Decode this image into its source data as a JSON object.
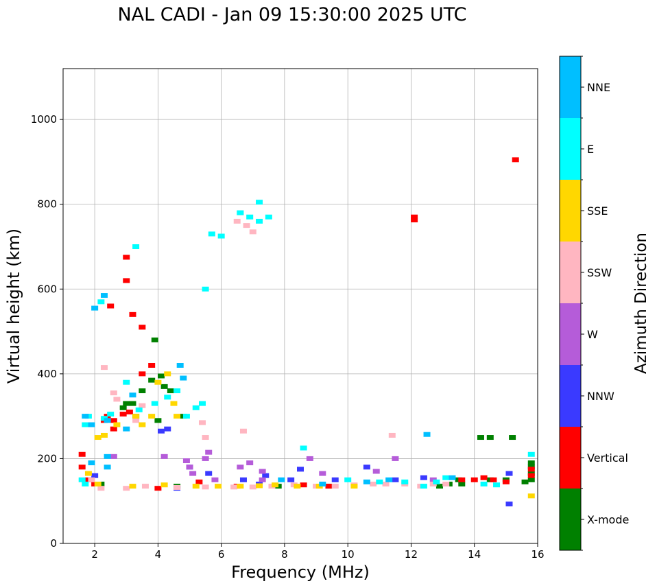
{
  "chart_data": {
    "type": "scatter",
    "title": "NAL CADI - Jan 09 15:30:00 2025 UTC",
    "xlabel": "Frequency (MHz)",
    "ylabel": "Virtual height (km)",
    "xlim": [
      1.0,
      16.0
    ],
    "ylim": [
      0,
      1120
    ],
    "xticks": [
      2,
      4,
      6,
      8,
      10,
      12,
      14,
      16
    ],
    "yticks": [
      0,
      200,
      400,
      600,
      800,
      1000
    ],
    "grid": true,
    "colorbar": {
      "label": "Azimuth Direction",
      "categories": [
        {
          "name": "X-mode",
          "color": "#008000"
        },
        {
          "name": "Vertical",
          "color": "#ff0000"
        },
        {
          "name": "NNW",
          "color": "#3a3aff"
        },
        {
          "name": "W",
          "color": "#b55cd9"
        },
        {
          "name": "SSW",
          "color": "#ffb6c1"
        },
        {
          "name": "SSE",
          "color": "#ffd700"
        },
        {
          "name": "E",
          "color": "#00ffff"
        },
        {
          "name": "NNE",
          "color": "#00bfff"
        }
      ]
    },
    "series": [
      {
        "name": "X-mode",
        "points": [
          [
            3.2,
            330
          ],
          [
            3.5,
            360
          ],
          [
            3.8,
            385
          ],
          [
            3.9,
            480
          ],
          [
            4.1,
            395
          ],
          [
            4.2,
            370
          ],
          [
            4.4,
            360
          ],
          [
            4.8,
            300
          ],
          [
            3.3,
            300
          ],
          [
            2.2,
            140
          ],
          [
            13.2,
            140
          ],
          [
            13.5,
            150
          ],
          [
            14.2,
            250
          ],
          [
            14.5,
            250
          ],
          [
            15.2,
            250
          ],
          [
            14.5,
            150
          ],
          [
            15.0,
            150
          ],
          [
            15.8,
            150
          ],
          [
            15.8,
            165
          ],
          [
            15.8,
            180
          ],
          [
            15.8,
            190
          ],
          [
            15.6,
            145
          ],
          [
            12.9,
            135
          ],
          [
            13.6,
            140
          ],
          [
            4.6,
            135
          ],
          [
            7.8,
            135
          ],
          [
            9.4,
            135
          ],
          [
            2.9,
            320
          ],
          [
            3.0,
            330
          ],
          [
            4.0,
            290
          ]
        ]
      },
      {
        "name": "Vertical",
        "points": [
          [
            15.3,
            905
          ],
          [
            12.1,
            770
          ],
          [
            12.1,
            763
          ],
          [
            3.0,
            675
          ],
          [
            3.0,
            620
          ],
          [
            2.5,
            560
          ],
          [
            3.2,
            540
          ],
          [
            3.5,
            510
          ],
          [
            2.4,
            300
          ],
          [
            2.3,
            290
          ],
          [
            2.6,
            290
          ],
          [
            2.9,
            305
          ],
          [
            3.1,
            310
          ],
          [
            3.5,
            400
          ],
          [
            3.8,
            420
          ],
          [
            1.6,
            180
          ],
          [
            1.8,
            150
          ],
          [
            2.0,
            140
          ],
          [
            4.0,
            130
          ],
          [
            6.5,
            135
          ],
          [
            8.6,
            138
          ],
          [
            9.4,
            135
          ],
          [
            13.6,
            150
          ],
          [
            14.0,
            150
          ],
          [
            14.3,
            155
          ],
          [
            14.6,
            150
          ],
          [
            15.0,
            145
          ],
          [
            15.8,
            160
          ],
          [
            15.8,
            175
          ],
          [
            5.3,
            145
          ],
          [
            2.6,
            270
          ],
          [
            1.6,
            210
          ]
        ]
      },
      {
        "name": "NNW",
        "points": [
          [
            4.1,
            265
          ],
          [
            4.3,
            270
          ],
          [
            5.0,
            180
          ],
          [
            5.6,
            165
          ],
          [
            6.7,
            150
          ],
          [
            7.2,
            140
          ],
          [
            8.5,
            175
          ],
          [
            9.6,
            150
          ],
          [
            10.6,
            180
          ],
          [
            11.5,
            150
          ],
          [
            12.4,
            155
          ],
          [
            15.1,
            165
          ],
          [
            15.1,
            93
          ],
          [
            2.0,
            160
          ],
          [
            4.6,
            130
          ],
          [
            7.4,
            160
          ],
          [
            8.2,
            150
          ]
        ]
      },
      {
        "name": "W",
        "points": [
          [
            4.2,
            205
          ],
          [
            4.9,
            195
          ],
          [
            5.0,
            180
          ],
          [
            5.1,
            165
          ],
          [
            5.5,
            200
          ],
          [
            5.6,
            215
          ],
          [
            6.6,
            180
          ],
          [
            6.9,
            190
          ],
          [
            7.3,
            170
          ],
          [
            7.3,
            150
          ],
          [
            8.8,
            200
          ],
          [
            9.2,
            165
          ],
          [
            10.9,
            170
          ],
          [
            11.5,
            200
          ],
          [
            12.7,
            150
          ],
          [
            5.8,
            150
          ],
          [
            2.6,
            205
          ]
        ]
      },
      {
        "name": "SSW",
        "points": [
          [
            2.3,
            415
          ],
          [
            2.6,
            355
          ],
          [
            2.7,
            340
          ],
          [
            6.6,
            780
          ],
          [
            6.5,
            760
          ],
          [
            6.8,
            750
          ],
          [
            7.0,
            735
          ],
          [
            6.7,
            265
          ],
          [
            2.2,
            130
          ],
          [
            3.0,
            130
          ],
          [
            3.6,
            135
          ],
          [
            4.6,
            132
          ],
          [
            5.5,
            133
          ],
          [
            6.4,
            133
          ],
          [
            7.0,
            133
          ],
          [
            7.6,
            135
          ],
          [
            8.3,
            138
          ],
          [
            9.0,
            135
          ],
          [
            9.6,
            135
          ],
          [
            10.2,
            138
          ],
          [
            10.8,
            140
          ],
          [
            11.2,
            140
          ],
          [
            11.8,
            140
          ],
          [
            12.3,
            135
          ],
          [
            12.7,
            140
          ],
          [
            13.1,
            140
          ],
          [
            11.4,
            255
          ],
          [
            5.4,
            285
          ],
          [
            5.5,
            250
          ],
          [
            3.5,
            325
          ],
          [
            3.3,
            290
          ],
          [
            1.9,
            150
          ]
        ]
      },
      {
        "name": "SSE",
        "points": [
          [
            3.3,
            300
          ],
          [
            3.5,
            280
          ],
          [
            3.8,
            300
          ],
          [
            4.0,
            380
          ],
          [
            4.3,
            400
          ],
          [
            4.5,
            330
          ],
          [
            4.6,
            300
          ],
          [
            2.3,
            255
          ],
          [
            2.7,
            280
          ],
          [
            2.1,
            250
          ],
          [
            1.8,
            165
          ],
          [
            2.1,
            140
          ],
          [
            3.2,
            135
          ],
          [
            4.2,
            138
          ],
          [
            5.2,
            135
          ],
          [
            5.9,
            135
          ],
          [
            6.6,
            135
          ],
          [
            7.2,
            136
          ],
          [
            7.7,
            138
          ],
          [
            8.4,
            135
          ],
          [
            9.1,
            135
          ],
          [
            10.2,
            135
          ],
          [
            15.8,
            112
          ]
        ]
      },
      {
        "name": "E",
        "points": [
          [
            6.6,
            780
          ],
          [
            6.9,
            770
          ],
          [
            7.2,
            760
          ],
          [
            7.5,
            770
          ],
          [
            7.2,
            805
          ],
          [
            5.7,
            730
          ],
          [
            6.0,
            725
          ],
          [
            5.5,
            600
          ],
          [
            3.3,
            700
          ],
          [
            1.7,
            280
          ],
          [
            1.8,
            300
          ],
          [
            2.3,
            295
          ],
          [
            2.5,
            305
          ],
          [
            3.4,
            315
          ],
          [
            3.9,
            330
          ],
          [
            4.3,
            345
          ],
          [
            4.9,
            300
          ],
          [
            5.2,
            320
          ],
          [
            5.4,
            330
          ],
          [
            4.6,
            360
          ],
          [
            3.0,
            380
          ],
          [
            1.6,
            150
          ],
          [
            1.7,
            140
          ],
          [
            8.6,
            225
          ],
          [
            10.0,
            150
          ],
          [
            11.0,
            145
          ],
          [
            11.8,
            145
          ],
          [
            12.4,
            135
          ],
          [
            12.8,
            145
          ],
          [
            13.1,
            155
          ],
          [
            15.8,
            210
          ],
          [
            14.3,
            140
          ],
          [
            14.7,
            138
          ],
          [
            2.2,
            570
          ]
        ]
      },
      {
        "name": "NNE",
        "points": [
          [
            12.5,
            257
          ],
          [
            13.3,
            155
          ],
          [
            2.3,
            585
          ],
          [
            2.0,
            555
          ],
          [
            1.7,
            300
          ],
          [
            1.9,
            280
          ],
          [
            2.4,
            290
          ],
          [
            3.0,
            270
          ],
          [
            3.2,
            350
          ],
          [
            4.7,
            420
          ],
          [
            4.8,
            390
          ],
          [
            2.4,
            180
          ],
          [
            2.4,
            205
          ],
          [
            1.9,
            190
          ],
          [
            10.6,
            145
          ],
          [
            11.3,
            150
          ],
          [
            7.9,
            150
          ],
          [
            9.2,
            140
          ]
        ]
      }
    ]
  }
}
